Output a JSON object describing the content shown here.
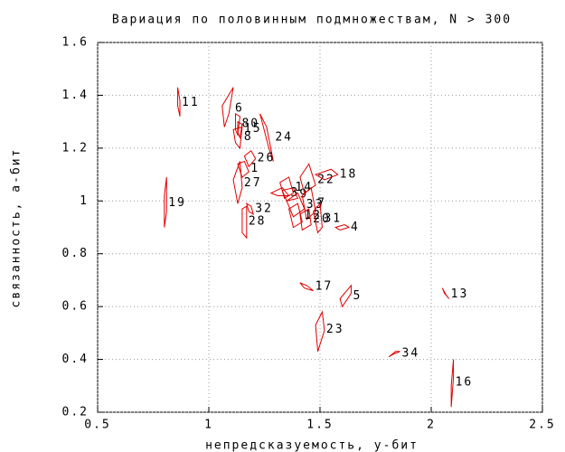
{
  "chart_data": {
    "type": "polygon-scatter",
    "title": "Вариация по половинным подмножествам, N > 300",
    "x_label": "непредсказуемость, у-бит",
    "y_label": "связанность, а-бит",
    "xlim": [
      0.5,
      2.5
    ],
    "xticks": [
      0.5,
      1,
      1.5,
      2,
      2.5
    ],
    "ylim": [
      0.2,
      1.6
    ],
    "yticks": [
      0.2,
      0.4,
      0.6,
      0.8,
      1,
      1.2,
      1.4,
      1.6
    ],
    "grid": true,
    "color": "#e00000",
    "items": [
      {
        "label": "11",
        "x": [
          0.86,
          0.87,
          0.87,
          0.86
        ],
        "y": [
          1.43,
          1.38,
          1.32,
          1.36
        ]
      },
      {
        "label": "6",
        "x": [
          1.06,
          1.11,
          1.09,
          1.07
        ],
        "y": [
          1.36,
          1.43,
          1.33,
          1.28
        ]
      },
      {
        "label": "80",
        "x": [
          1.12,
          1.14,
          1.13,
          1.12
        ],
        "y": [
          1.33,
          1.32,
          1.25,
          1.27
        ]
      },
      {
        "label": "15",
        "x": [
          1.13,
          1.15,
          1.14,
          1.13
        ],
        "y": [
          1.3,
          1.29,
          1.24,
          1.26
        ]
      },
      {
        "label": "8",
        "x": [
          1.11,
          1.15,
          1.14,
          1.12
        ],
        "y": [
          1.27,
          1.28,
          1.2,
          1.22
        ]
      },
      {
        "label": "24",
        "x": [
          1.23,
          1.26,
          1.29,
          1.27
        ],
        "y": [
          1.33,
          1.28,
          1.15,
          1.2
        ]
      },
      {
        "label": "26",
        "x": [
          1.16,
          1.19,
          1.21,
          1.18
        ],
        "y": [
          1.17,
          1.19,
          1.16,
          1.13
        ]
      },
      {
        "label": "1",
        "x": [
          1.13,
          1.16,
          1.18,
          1.15
        ],
        "y": [
          1.14,
          1.15,
          1.11,
          1.09
        ]
      },
      {
        "label": "27",
        "x": [
          1.11,
          1.14,
          1.15,
          1.13
        ],
        "y": [
          1.08,
          1.15,
          1.05,
          0.99
        ]
      },
      {
        "label": "19",
        "x": [
          0.8,
          0.81,
          0.81,
          0.8
        ],
        "y": [
          1.02,
          1.09,
          0.96,
          0.9
        ]
      },
      {
        "label": "32",
        "x": [
          1.17,
          1.19,
          1.2,
          1.18
        ],
        "y": [
          0.99,
          0.98,
          0.95,
          0.96
        ]
      },
      {
        "label": "28",
        "x": [
          1.15,
          1.17,
          1.17,
          1.15
        ],
        "y": [
          0.97,
          0.98,
          0.86,
          0.88
        ]
      },
      {
        "label": "14",
        "x": [
          1.32,
          1.36,
          1.38,
          1.34
        ],
        "y": [
          1.07,
          1.09,
          1.03,
          1.01
        ]
      },
      {
        "label": "9",
        "x": [
          1.33,
          1.38,
          1.4,
          1.35
        ],
        "y": [
          1.04,
          1.05,
          1.01,
          1.0
        ]
      },
      {
        "label": "3",
        "x": [
          1.28,
          1.33,
          1.36,
          1.31
        ],
        "y": [
          1.03,
          1.05,
          1.02,
          1.02
        ]
      },
      {
        "label": "33",
        "x": [
          1.35,
          1.4,
          1.43,
          1.38
        ],
        "y": [
          1.0,
          1.03,
          0.97,
          0.94
        ]
      },
      {
        "label": "7",
        "x": [
          1.42,
          1.46,
          1.48,
          1.44
        ],
        "y": [
          1.02,
          1.05,
          0.96,
          0.93
        ]
      },
      {
        "label": "12",
        "x": [
          1.36,
          1.4,
          1.42,
          1.38
        ],
        "y": [
          0.97,
          0.99,
          0.92,
          0.9
        ]
      },
      {
        "label": "22",
        "x": [
          1.41,
          1.45,
          1.48,
          1.43
        ],
        "y": [
          1.09,
          1.14,
          1.06,
          1.03
        ]
      },
      {
        "label": "18",
        "x": [
          1.48,
          1.55,
          1.58,
          1.52
        ],
        "y": [
          1.1,
          1.12,
          1.1,
          1.08
        ]
      },
      {
        "label": "20",
        "x": [
          1.41,
          1.45,
          1.46,
          1.42
        ],
        "y": [
          0.95,
          0.97,
          0.91,
          0.89
        ]
      },
      {
        "label": "31",
        "x": [
          1.47,
          1.5,
          1.51,
          1.49
        ],
        "y": [
          0.96,
          0.99,
          0.9,
          0.88
        ]
      },
      {
        "label": "4",
        "x": [
          1.57,
          1.61,
          1.63,
          1.59
        ],
        "y": [
          0.9,
          0.91,
          0.9,
          0.89
        ]
      },
      {
        "label": "17",
        "x": [
          1.41,
          1.44,
          1.47,
          1.43
        ],
        "y": [
          0.69,
          0.68,
          0.66,
          0.67
        ]
      },
      {
        "label": "5",
        "x": [
          1.59,
          1.64,
          1.64,
          1.6
        ],
        "y": [
          0.63,
          0.68,
          0.65,
          0.6
        ]
      },
      {
        "label": "23",
        "x": [
          1.48,
          1.51,
          1.52,
          1.49
        ],
        "y": [
          0.53,
          0.58,
          0.51,
          0.43
        ]
      },
      {
        "label": "13",
        "x": [
          2.05,
          2.06,
          2.08,
          2.07
        ],
        "y": [
          0.67,
          0.65,
          0.63,
          0.64
        ]
      },
      {
        "label": "34",
        "x": [
          1.81,
          1.84,
          1.86,
          1.83
        ],
        "y": [
          0.41,
          0.43,
          0.43,
          0.42
        ]
      },
      {
        "label": "16",
        "x": [
          2.09,
          2.1,
          2.1,
          2.09
        ],
        "y": [
          0.3,
          0.4,
          0.33,
          0.22
        ]
      }
    ]
  }
}
